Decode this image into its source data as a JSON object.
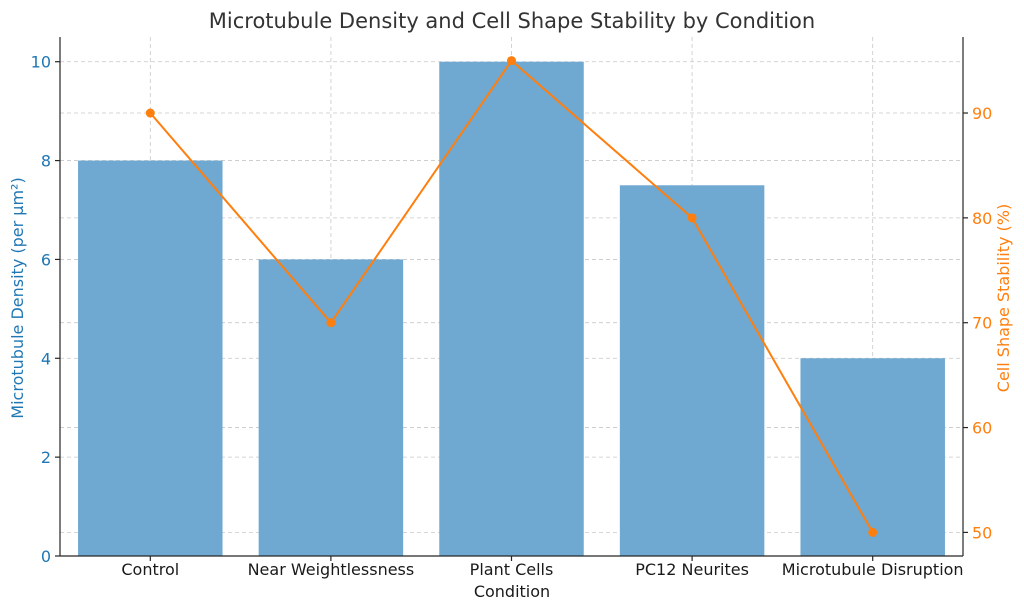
{
  "chart_data": {
    "type": "bar+line",
    "title": "Microtubule Density and Cell Shape Stability by Condition",
    "xlabel": "Condition",
    "categories": [
      "Control",
      "Near Weightlessness",
      "Plant Cells",
      "PC12 Neurites",
      "Microtubule Disruption"
    ],
    "series": [
      {
        "name": "Microtubule Density (per µm²)",
        "type": "bar",
        "axis": "left",
        "color": "#6fa8d0",
        "values": [
          8,
          6,
          10,
          7.5,
          4
        ]
      },
      {
        "name": "Cell Shape Stability (%)",
        "type": "line",
        "axis": "right",
        "color": "#ff7f0e",
        "values": [
          90,
          70,
          95,
          80,
          50
        ]
      }
    ],
    "y_left": {
      "label": "Microtubule Density (per µm²)",
      "range": [
        0,
        10.5
      ],
      "ticks": [
        0,
        2,
        4,
        6,
        8,
        10
      ],
      "color": "#1f77b4"
    },
    "y_right": {
      "label": "Cell Shape Stability (%)",
      "range": [
        47.75,
        97.25
      ],
      "ticks": [
        50,
        60,
        70,
        80,
        90
      ],
      "color": "#ff7f0e"
    },
    "grid": true,
    "legend": "none"
  }
}
